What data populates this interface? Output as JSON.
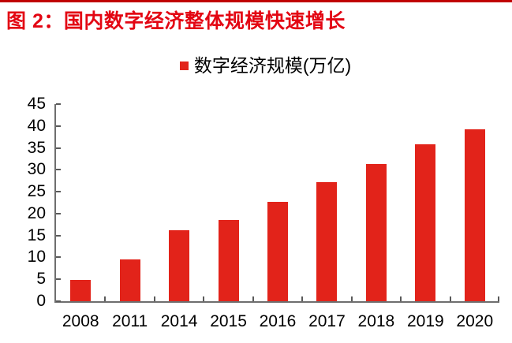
{
  "header": {
    "title": "图 2：国内数字经济整体规模快速增长",
    "title_color": "#e30613",
    "rule_color": "#c00000"
  },
  "chart_data": {
    "type": "bar",
    "title": "图 2：国内数字经济整体规模快速增长",
    "categories": [
      "2008",
      "2011",
      "2014",
      "2015",
      "2016",
      "2017",
      "2018",
      "2019",
      "2020"
    ],
    "series": [
      {
        "name": "数字经济规模(万亿)",
        "values": [
          4.8,
          9.5,
          16.2,
          18.6,
          22.6,
          27.2,
          31.3,
          35.8,
          39.2
        ]
      }
    ],
    "xlabel": "",
    "ylabel": "",
    "ylim": [
      0,
      45
    ],
    "yticks": [
      0,
      5,
      10,
      15,
      20,
      25,
      30,
      35,
      40,
      45
    ],
    "grid": false,
    "legend_position": "top-center",
    "bar_color": "#e2231a",
    "axis_color": "#6e6e6e",
    "tick_color": "#595959",
    "text_color": "#000000"
  }
}
